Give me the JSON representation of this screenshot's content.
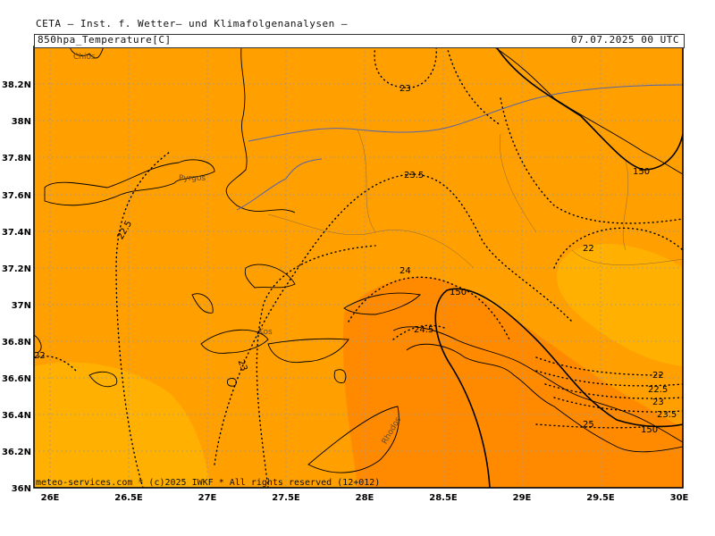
{
  "header": {
    "title": "CETA — Inst. f. Wetter— und Klimafolgenanalysen —",
    "parameter": "850hpa_Temperature[C]",
    "datetime": "07.07.2025 00 UTC"
  },
  "footer": {
    "copyright": "meteo-services.com * (c)2025 IWKF * All rights reserved (12+012)"
  },
  "axes": {
    "lat_labels": [
      "38.2N",
      "38N",
      "37.8N",
      "37.6N",
      "37.4N",
      "37.2N",
      "37N",
      "36.8N",
      "36.6N",
      "36.4N",
      "36.2N",
      "36N"
    ],
    "lon_labels": [
      "26E",
      "26.5E",
      "27E",
      "27.5E",
      "28E",
      "28.5E",
      "29E",
      "29.5E",
      "30E"
    ]
  },
  "places": [
    "Chios",
    "Pyrgos",
    "Kos",
    "Rhodos"
  ],
  "contour_labels": {
    "t23_top": "23",
    "t23_5": "23.5",
    "t22_5": "22.5",
    "t24": "24",
    "t24_5": "24.5",
    "t23_left": "23",
    "t22_left": "22",
    "t22_right": "22",
    "t22_se": "22",
    "t22_5_se": "22.5",
    "t23_se": "23",
    "t23_5_se": "23.5",
    "t25": "25",
    "h150_ne": "150",
    "h150_mid": "150",
    "h150_se": "150"
  },
  "colors": {
    "t22_23": "#ff9f00",
    "t24_25": "#ff8a00",
    "t_below_22": "#ffb000",
    "contour": "#000000",
    "coast": "#000000",
    "border": "#5566aa",
    "grid": "#999999"
  }
}
